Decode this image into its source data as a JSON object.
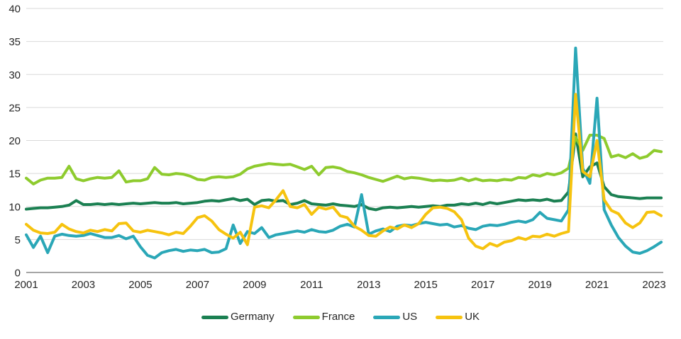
{
  "chart_data": {
    "type": "line",
    "title": "",
    "xlabel": "",
    "ylabel": "",
    "x_start": 2001,
    "x_step_years": 0.25,
    "x_frequency": "quarterly",
    "x_tick_years": [
      2001,
      2003,
      2005,
      2007,
      2009,
      2011,
      2013,
      2015,
      2017,
      2019,
      2021,
      2023
    ],
    "y_ticks": [
      0,
      5,
      10,
      15,
      20,
      25,
      30,
      35,
      40
    ],
    "ylim": [
      0,
      40
    ],
    "xlim": [
      2001,
      2023.35
    ],
    "grid": "horizontal-only",
    "legend_position": "bottom-center",
    "series": [
      {
        "name": "Germany",
        "color": "#1b8052",
        "values": [
          9.6,
          9.7,
          9.8,
          9.8,
          9.9,
          10.0,
          10.2,
          10.9,
          10.3,
          10.3,
          10.4,
          10.3,
          10.4,
          10.3,
          10.4,
          10.5,
          10.4,
          10.5,
          10.6,
          10.5,
          10.5,
          10.6,
          10.4,
          10.5,
          10.6,
          10.8,
          10.9,
          10.8,
          11.0,
          11.2,
          10.9,
          11.1,
          10.3,
          10.9,
          11.0,
          10.8,
          10.9,
          10.3,
          10.5,
          10.9,
          10.4,
          10.3,
          10.2,
          10.4,
          10.2,
          10.1,
          10.0,
          10.3,
          9.7,
          9.5,
          9.8,
          9.9,
          9.8,
          9.9,
          10.0,
          9.9,
          10.0,
          10.1,
          10.0,
          10.2,
          10.2,
          10.4,
          10.3,
          10.5,
          10.3,
          10.6,
          10.4,
          10.6,
          10.8,
          11.0,
          10.9,
          11.0,
          10.9,
          11.1,
          10.8,
          10.9,
          12.2,
          21.0,
          14.5,
          16.0,
          16.6,
          13.0,
          11.8,
          11.5,
          11.4,
          11.3,
          11.2,
          11.3,
          11.3,
          11.3
        ]
      },
      {
        "name": "France",
        "color": "#8ecb2e",
        "values": [
          14.3,
          13.4,
          14.0,
          14.3,
          14.3,
          14.4,
          16.1,
          14.2,
          13.9,
          14.2,
          14.4,
          14.3,
          14.4,
          15.4,
          13.7,
          13.9,
          13.9,
          14.2,
          15.9,
          14.9,
          14.8,
          15.0,
          14.9,
          14.6,
          14.1,
          14.0,
          14.4,
          14.5,
          14.4,
          14.5,
          14.9,
          15.7,
          16.1,
          16.3,
          16.5,
          16.4,
          16.3,
          16.4,
          16.0,
          15.6,
          16.1,
          14.8,
          15.9,
          16.0,
          15.8,
          15.3,
          15.1,
          14.8,
          14.4,
          14.1,
          13.8,
          14.2,
          14.6,
          14.2,
          14.4,
          14.3,
          14.1,
          13.9,
          14.0,
          13.9,
          14.0,
          14.3,
          13.9,
          14.2,
          13.9,
          14.0,
          13.9,
          14.1,
          14.0,
          14.4,
          14.3,
          14.8,
          14.6,
          15.0,
          14.8,
          15.1,
          15.8,
          20.5,
          18.5,
          20.8,
          20.8,
          20.3,
          17.5,
          17.8,
          17.4,
          18.0,
          17.3,
          17.6,
          18.5,
          18.3
        ]
      },
      {
        "name": "US",
        "color": "#2aa7b7",
        "values": [
          5.7,
          3.8,
          5.5,
          3.0,
          5.5,
          5.8,
          5.6,
          5.5,
          5.6,
          5.9,
          5.6,
          5.3,
          5.3,
          5.6,
          5.1,
          5.5,
          3.9,
          2.6,
          2.2,
          3.0,
          3.3,
          3.5,
          3.2,
          3.4,
          3.3,
          3.5,
          3.0,
          3.1,
          3.6,
          7.2,
          4.4,
          6.2,
          5.9,
          6.8,
          5.3,
          5.7,
          5.9,
          6.1,
          6.3,
          6.1,
          6.5,
          6.2,
          6.1,
          6.4,
          7.0,
          7.3,
          6.9,
          11.8,
          5.8,
          6.3,
          6.6,
          6.2,
          7.0,
          7.2,
          7.1,
          7.4,
          7.6,
          7.4,
          7.2,
          7.3,
          6.9,
          7.1,
          6.7,
          6.5,
          7.0,
          7.2,
          7.1,
          7.3,
          7.6,
          7.8,
          7.6,
          8.0,
          9.1,
          8.2,
          8.0,
          7.8,
          9.5,
          34.0,
          15.8,
          13.5,
          26.4,
          9.5,
          7.2,
          5.3,
          4.0,
          3.1,
          2.9,
          3.3,
          3.9,
          4.6
        ]
      },
      {
        "name": "UK",
        "color": "#f6c30f",
        "values": [
          7.3,
          6.4,
          6.0,
          5.9,
          6.1,
          7.3,
          6.6,
          6.2,
          6.0,
          6.4,
          6.2,
          6.5,
          6.3,
          7.4,
          7.5,
          6.3,
          6.1,
          6.4,
          6.2,
          6.0,
          5.7,
          6.1,
          5.9,
          7.0,
          8.3,
          8.6,
          7.8,
          6.5,
          5.8,
          5.2,
          6.1,
          4.2,
          9.9,
          10.1,
          9.8,
          11.0,
          12.4,
          10.0,
          9.8,
          10.3,
          8.8,
          9.9,
          9.6,
          9.9,
          8.6,
          8.3,
          7.0,
          6.4,
          5.6,
          5.5,
          6.3,
          6.9,
          6.6,
          7.2,
          6.8,
          7.4,
          8.8,
          9.8,
          9.9,
          9.7,
          9.2,
          8.0,
          5.2,
          4.0,
          3.6,
          4.4,
          4.0,
          4.6,
          4.8,
          5.3,
          5.0,
          5.5,
          5.4,
          5.8,
          5.5,
          5.9,
          6.2,
          27.0,
          15.3,
          14.5,
          20.0,
          11.0,
          9.4,
          8.9,
          7.5,
          6.8,
          7.5,
          9.1,
          9.2,
          8.6
        ]
      }
    ]
  },
  "colors": {
    "background": "#ffffff",
    "gridline": "#d9d9d9",
    "axis_line": "#a6a6a6",
    "tick_text": "#262626"
  },
  "legend": {
    "labels": [
      "Germany",
      "France",
      "US",
      "UK"
    ]
  }
}
